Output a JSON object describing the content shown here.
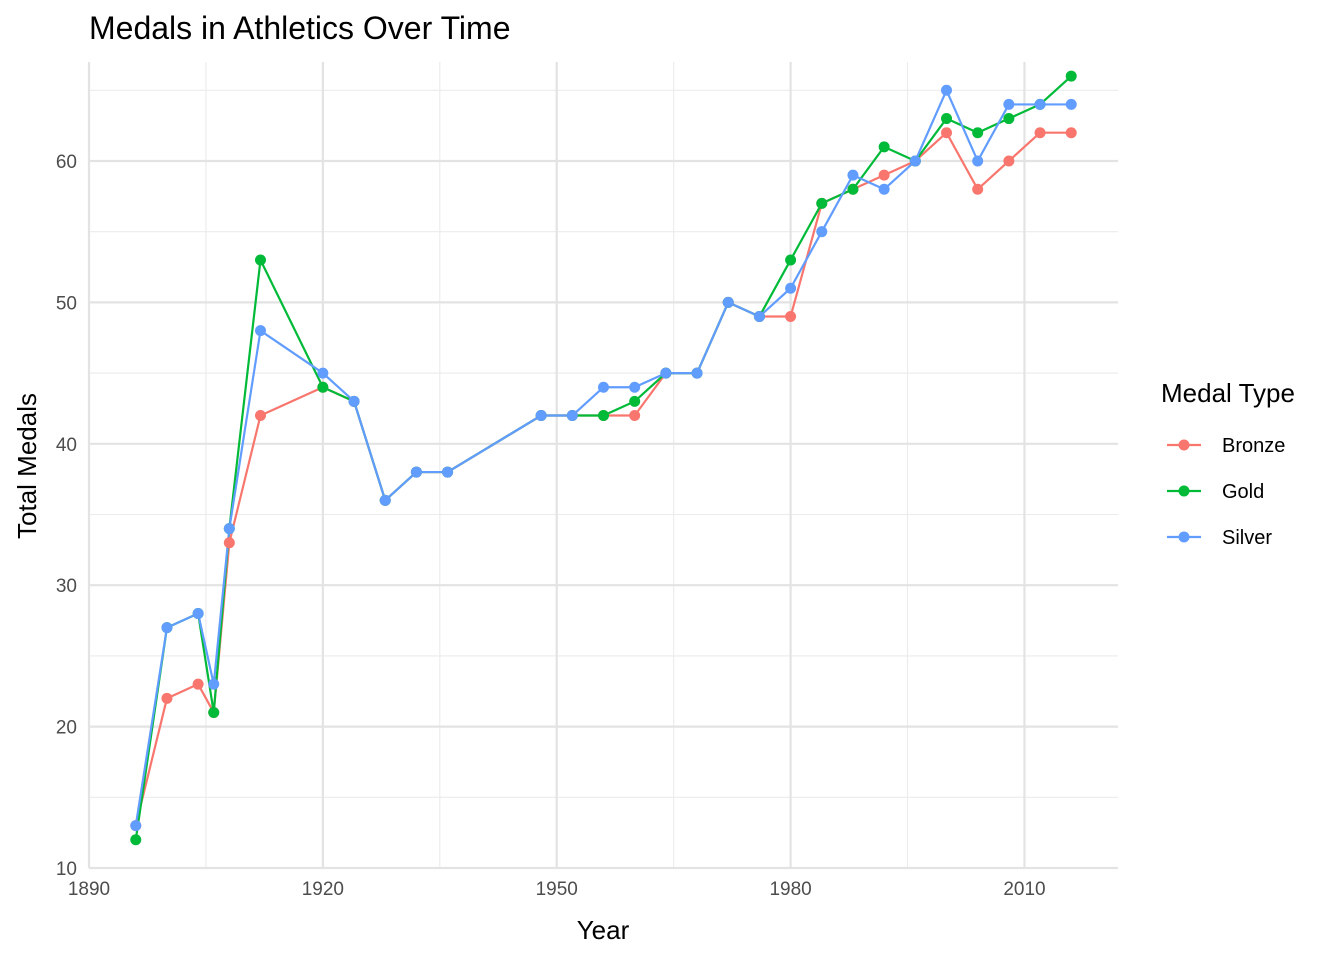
{
  "chart_data": {
    "type": "line",
    "title": "Medals in Athletics Over Time",
    "xlabel": "Year",
    "ylabel": "Total Medals",
    "xlim": [
      1890,
      2022
    ],
    "ylim": [
      10,
      67
    ],
    "x_ticks": [
      1890,
      1920,
      1950,
      1980,
      2010
    ],
    "y_ticks": [
      10,
      20,
      30,
      40,
      50,
      60
    ],
    "x_minor_ticks": [
      1905,
      1935,
      1965,
      1995
    ],
    "y_minor_ticks": [
      15,
      25,
      35,
      45,
      55,
      65
    ],
    "grid": true,
    "markers": true,
    "legend": {
      "title": "Medal Type",
      "position": "right"
    },
    "series": [
      {
        "name": "Bronze",
        "color": "#F8766D",
        "x": [
          1896,
          1900,
          1904,
          1906,
          1908,
          1912,
          1920,
          1924,
          1928,
          1932,
          1936,
          1948,
          1952,
          1956,
          1960,
          1964,
          1968,
          1972,
          1976,
          1980,
          1984,
          1988,
          1992,
          1996,
          2000,
          2004,
          2008,
          2012,
          2016
        ],
        "y": [
          13,
          22,
          23,
          21,
          33,
          42,
          44,
          43,
          36,
          38,
          38,
          42,
          42,
          42,
          42,
          45,
          45,
          50,
          49,
          49,
          57,
          58,
          59,
          60,
          62,
          58,
          60,
          62,
          62
        ]
      },
      {
        "name": "Gold",
        "color": "#00BA38",
        "x": [
          1896,
          1900,
          1904,
          1906,
          1908,
          1912,
          1920,
          1924,
          1928,
          1932,
          1936,
          1948,
          1952,
          1956,
          1960,
          1964,
          1968,
          1972,
          1976,
          1980,
          1984,
          1988,
          1992,
          1996,
          2000,
          2004,
          2008,
          2012,
          2016
        ],
        "y": [
          12,
          27,
          28,
          21,
          34,
          53,
          44,
          43,
          36,
          38,
          38,
          42,
          42,
          42,
          43,
          45,
          45,
          50,
          49,
          53,
          57,
          58,
          61,
          60,
          63,
          62,
          63,
          64,
          66
        ]
      },
      {
        "name": "Silver",
        "color": "#619CFF",
        "x": [
          1896,
          1900,
          1904,
          1906,
          1908,
          1912,
          1920,
          1924,
          1928,
          1932,
          1936,
          1948,
          1952,
          1956,
          1960,
          1964,
          1968,
          1972,
          1976,
          1980,
          1984,
          1988,
          1992,
          1996,
          2000,
          2004,
          2008,
          2012,
          2016
        ],
        "y": [
          13,
          27,
          28,
          23,
          34,
          48,
          45,
          43,
          36,
          38,
          38,
          42,
          42,
          44,
          44,
          45,
          45,
          50,
          49,
          51,
          55,
          59,
          58,
          60,
          65,
          60,
          64,
          64,
          64
        ]
      }
    ]
  }
}
